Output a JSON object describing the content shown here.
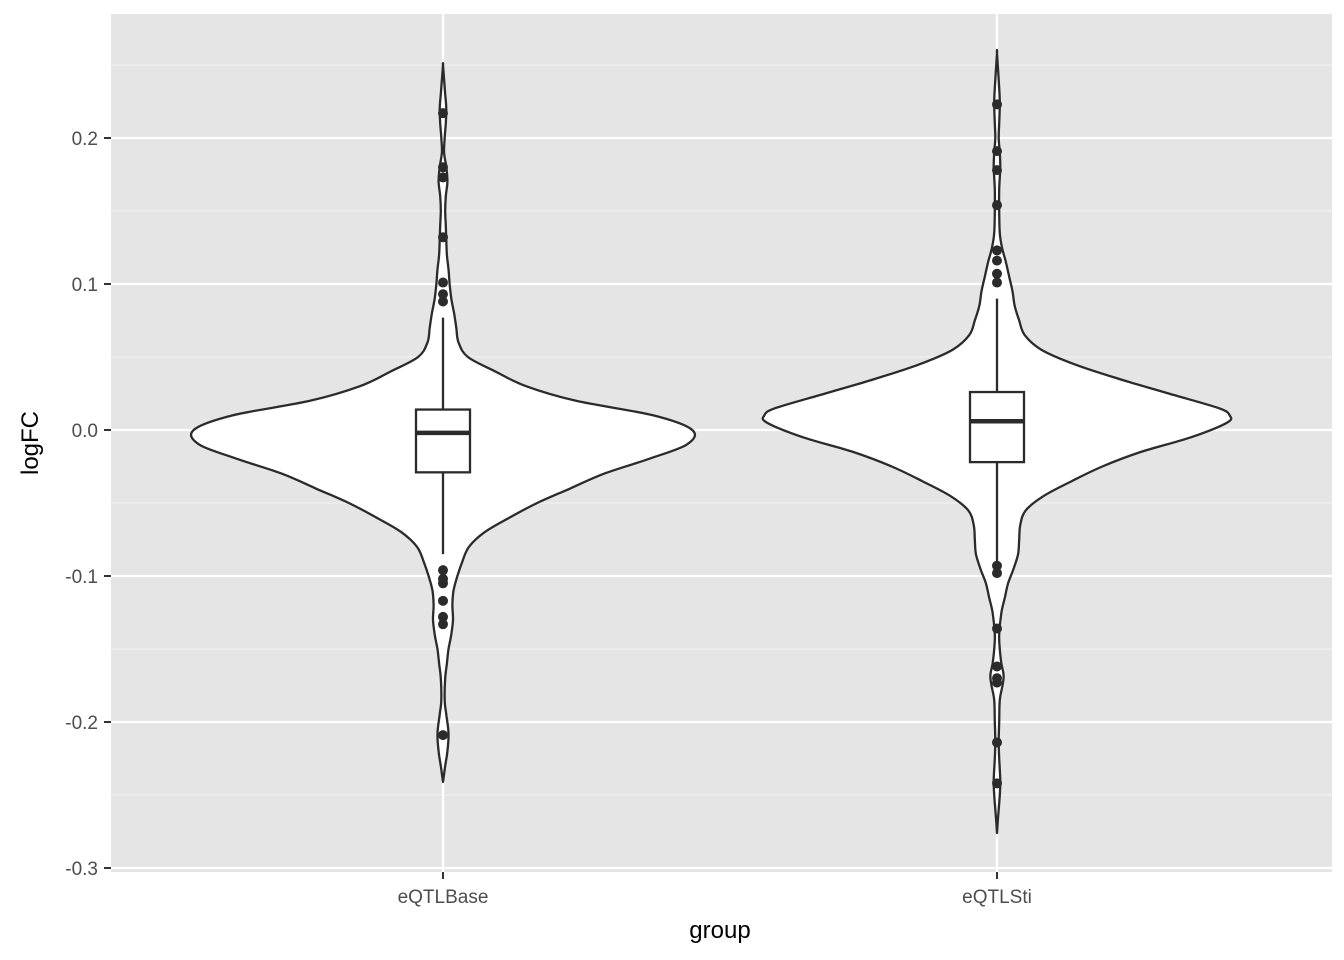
{
  "chart_data": {
    "type": "violin",
    "xlabel": "group",
    "ylabel": "logFC",
    "ylim": [
      -0.3,
      0.25
    ],
    "y_ticks": [
      {
        "value": -0.3,
        "label": "-0.3"
      },
      {
        "value": -0.2,
        "label": "-0.2"
      },
      {
        "value": -0.1,
        "label": "-0.1"
      },
      {
        "value": 0.0,
        "label": "0.0"
      },
      {
        "value": 0.1,
        "label": "0.1"
      },
      {
        "value": 0.2,
        "label": "0.2"
      }
    ],
    "categories": [
      "eQTLBase",
      "eQTLSti"
    ],
    "grid": true,
    "theme": {
      "panel_bg": "#e5e5e5",
      "grid_major": "#ffffff",
      "grid_minor": "#f2f2f2",
      "violin_fill": "#ffffff",
      "stroke": "#2b2b2b",
      "point": "#2b2b2b"
    },
    "groups": [
      {
        "name": "eQTLBase",
        "violin_max_halfwidth": 0.45,
        "density": [
          [
            -0.241,
            0.0
          ],
          [
            -0.23,
            0.004
          ],
          [
            -0.22,
            0.008
          ],
          [
            -0.208,
            0.01
          ],
          [
            -0.195,
            0.006
          ],
          [
            -0.185,
            0.003
          ],
          [
            -0.17,
            0.004
          ],
          [
            -0.16,
            0.007
          ],
          [
            -0.15,
            0.01
          ],
          [
            -0.14,
            0.015
          ],
          [
            -0.13,
            0.018
          ],
          [
            -0.12,
            0.017
          ],
          [
            -0.11,
            0.019
          ],
          [
            -0.1,
            0.026
          ],
          [
            -0.09,
            0.035
          ],
          [
            -0.08,
            0.047
          ],
          [
            -0.07,
            0.075
          ],
          [
            -0.06,
            0.12
          ],
          [
            -0.05,
            0.17
          ],
          [
            -0.04,
            0.23
          ],
          [
            -0.03,
            0.29
          ],
          [
            -0.02,
            0.37
          ],
          [
            -0.01,
            0.44
          ],
          [
            0.0,
            0.45
          ],
          [
            0.01,
            0.38
          ],
          [
            0.02,
            0.24
          ],
          [
            0.03,
            0.15
          ],
          [
            0.04,
            0.095
          ],
          [
            0.05,
            0.045
          ],
          [
            0.06,
            0.028
          ],
          [
            0.07,
            0.024
          ],
          [
            0.08,
            0.02
          ],
          [
            0.09,
            0.015
          ],
          [
            0.1,
            0.012
          ],
          [
            0.11,
            0.01
          ],
          [
            0.12,
            0.007
          ],
          [
            0.13,
            0.006
          ],
          [
            0.14,
            0.005
          ],
          [
            0.15,
            0.004
          ],
          [
            0.16,
            0.005
          ],
          [
            0.17,
            0.008
          ],
          [
            0.18,
            0.006
          ],
          [
            0.19,
            0.002
          ],
          [
            0.2,
            0.003
          ],
          [
            0.21,
            0.005
          ],
          [
            0.22,
            0.006
          ],
          [
            0.23,
            0.004
          ],
          [
            0.24,
            0.002
          ],
          [
            0.25,
            0.0
          ]
        ],
        "box": {
          "lower_whisker": -0.085,
          "q1": -0.029,
          "median": -0.002,
          "q3": 0.014,
          "upper_whisker": 0.077
        },
        "outliers": [
          0.217,
          0.18,
          0.173,
          0.132,
          0.101,
          0.093,
          0.088,
          -0.096,
          -0.102,
          -0.105,
          -0.117,
          -0.128,
          -0.133,
          -0.209
        ]
      },
      {
        "name": "eQTLSti",
        "violin_max_halfwidth": 0.42,
        "density": [
          [
            -0.276,
            0.0
          ],
          [
            -0.265,
            0.002
          ],
          [
            -0.25,
            0.005
          ],
          [
            -0.24,
            0.006
          ],
          [
            -0.225,
            0.004
          ],
          [
            -0.213,
            0.003
          ],
          [
            -0.2,
            0.004
          ],
          [
            -0.185,
            0.005
          ],
          [
            -0.175,
            0.01
          ],
          [
            -0.168,
            0.012
          ],
          [
            -0.16,
            0.008
          ],
          [
            -0.15,
            0.005
          ],
          [
            -0.14,
            0.004
          ],
          [
            -0.125,
            0.008
          ],
          [
            -0.115,
            0.014
          ],
          [
            -0.105,
            0.02
          ],
          [
            -0.095,
            0.03
          ],
          [
            -0.085,
            0.038
          ],
          [
            -0.075,
            0.04
          ],
          [
            -0.065,
            0.042
          ],
          [
            -0.055,
            0.052
          ],
          [
            -0.045,
            0.085
          ],
          [
            -0.035,
            0.135
          ],
          [
            -0.025,
            0.19
          ],
          [
            -0.015,
            0.26
          ],
          [
            -0.005,
            0.35
          ],
          [
            0.005,
            0.415
          ],
          [
            0.01,
            0.42
          ],
          [
            0.015,
            0.4
          ],
          [
            0.025,
            0.31
          ],
          [
            0.035,
            0.22
          ],
          [
            0.045,
            0.14
          ],
          [
            0.055,
            0.08
          ],
          [
            0.065,
            0.05
          ],
          [
            0.075,
            0.04
          ],
          [
            0.085,
            0.032
          ],
          [
            0.095,
            0.028
          ],
          [
            0.105,
            0.022
          ],
          [
            0.115,
            0.016
          ],
          [
            0.125,
            0.009
          ],
          [
            0.135,
            0.005
          ],
          [
            0.15,
            0.004
          ],
          [
            0.165,
            0.004
          ],
          [
            0.18,
            0.006
          ],
          [
            0.19,
            0.005
          ],
          [
            0.2,
            0.003
          ],
          [
            0.21,
            0.004
          ],
          [
            0.225,
            0.005
          ],
          [
            0.24,
            0.003
          ],
          [
            0.258,
            0.0
          ]
        ],
        "box": {
          "lower_whisker": -0.09,
          "q1": -0.022,
          "median": 0.006,
          "q3": 0.026,
          "upper_whisker": 0.09
        },
        "outliers": [
          0.223,
          0.191,
          0.178,
          0.154,
          0.123,
          0.116,
          0.107,
          0.101,
          -0.093,
          -0.098,
          -0.136,
          -0.162,
          -0.17,
          -0.173,
          -0.214,
          -0.242
        ]
      }
    ]
  }
}
